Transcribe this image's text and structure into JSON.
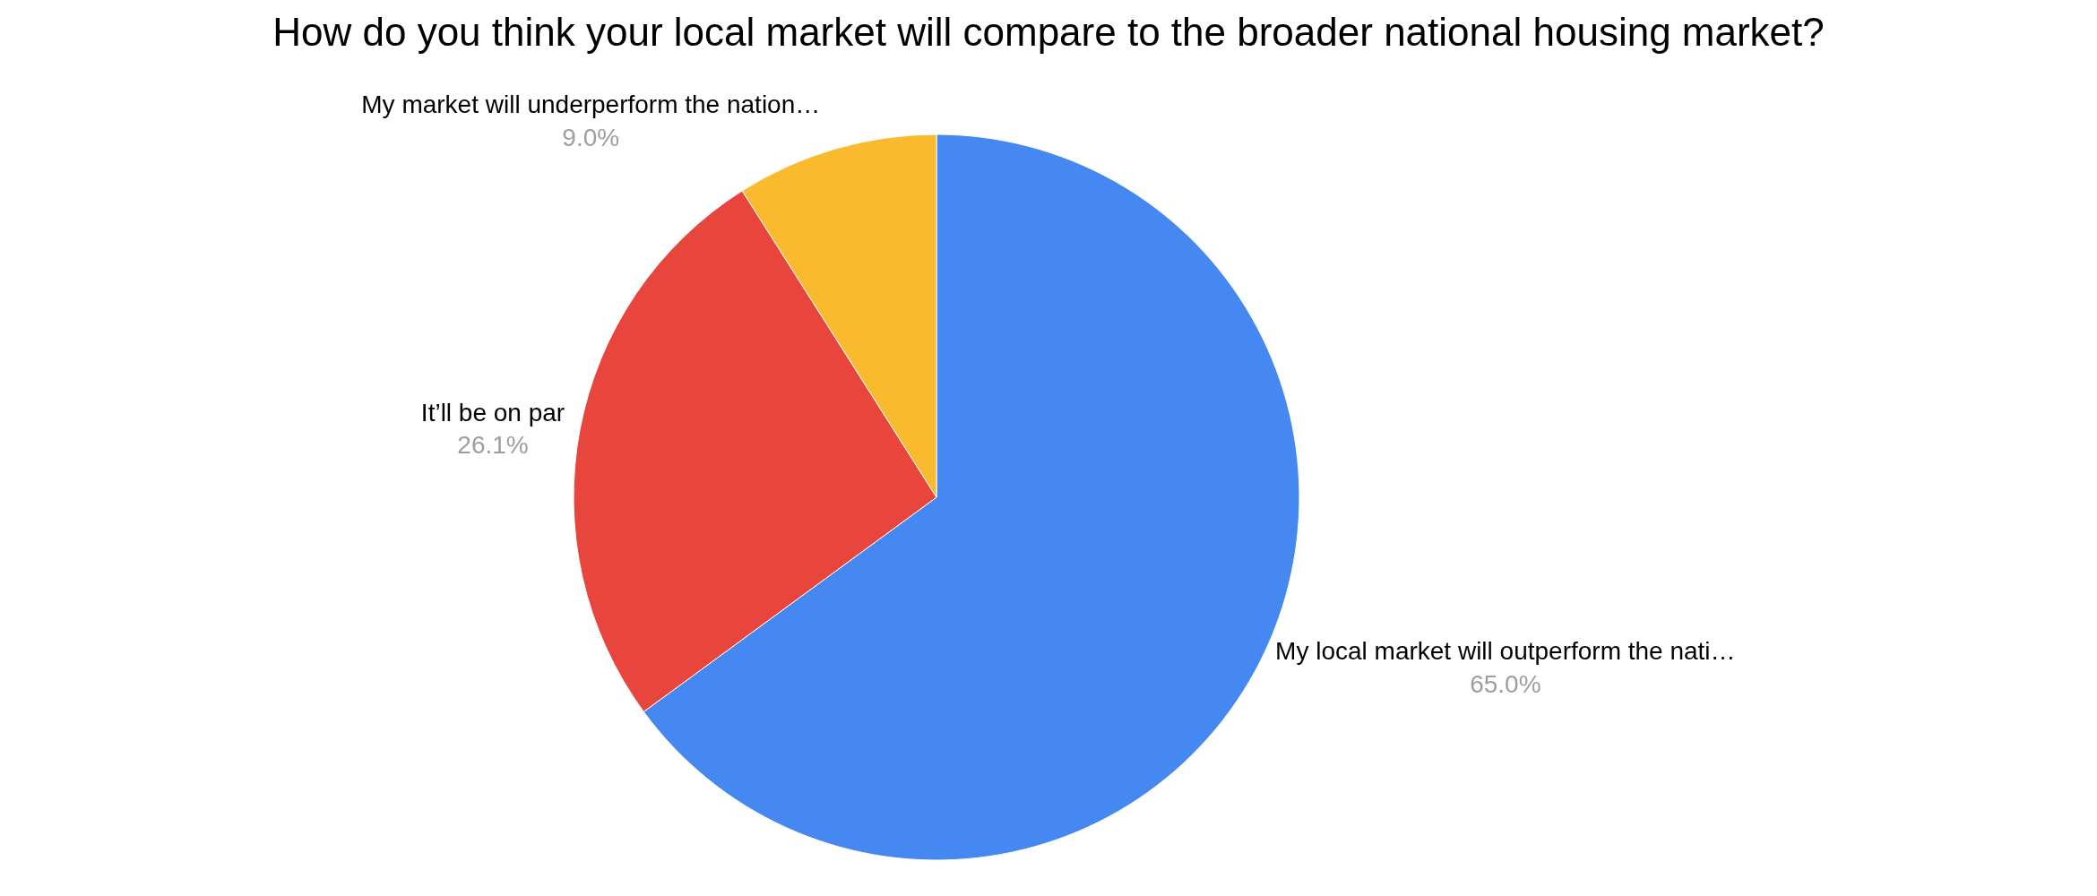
{
  "chart_data": {
    "type": "pie",
    "title": "How do you think your local market will compare to the broader national housing market?",
    "categories": [
      "My local market will outperform the nati…",
      "It’ll be on par",
      "My market will underperform the nation…"
    ],
    "values": [
      65.0,
      26.1,
      9.0
    ],
    "value_labels": [
      "65.0%",
      "26.1%",
      "9.0%"
    ],
    "colors": [
      "#4688f1",
      "#e8453c",
      "#f9bb2d"
    ],
    "legend": false
  }
}
